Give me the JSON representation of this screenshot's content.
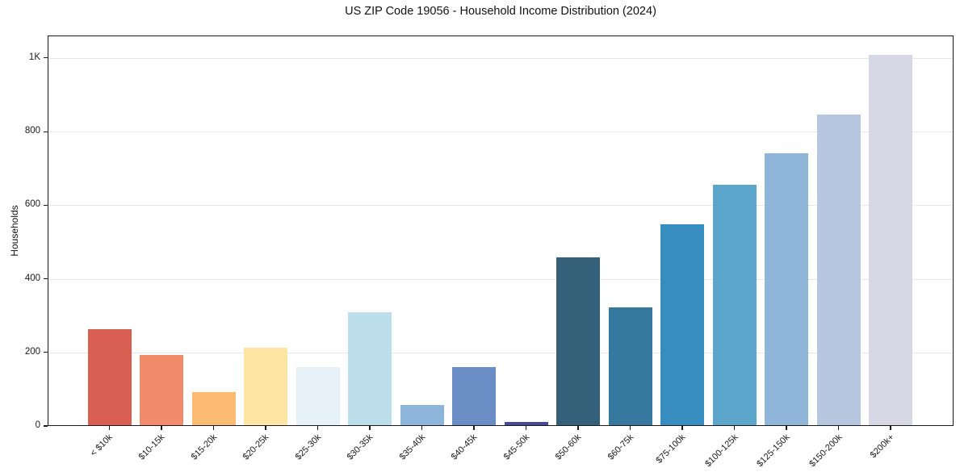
{
  "chart_data": {
    "type": "bar",
    "title": "US ZIP Code 19056 - Household Income Distribution (2024)",
    "xlabel": "",
    "ylabel": "Households",
    "categories": [
      "< $10k",
      "$10-15k",
      "$15-20k",
      "$20-25k",
      "$25-30k",
      "$30-35k",
      "$35-40k",
      "$40-45k",
      "$45-50k",
      "$50-60k",
      "$60-75k",
      "$75-100k",
      "$100-125k",
      "$125-150k",
      "$150-200k",
      "$200k+"
    ],
    "values": [
      263,
      192,
      93,
      213,
      160,
      309,
      57,
      160,
      10,
      458,
      322,
      548,
      656,
      740,
      846,
      1009
    ],
    "bar_colors": [
      "#d95f52",
      "#f28b6a",
      "#fbbb72",
      "#fde5a4",
      "#e6f2f7",
      "#bcdeeb",
      "#8db5d9",
      "#6b8dc6",
      "#474a9b",
      "#35607a",
      "#36789e",
      "#388dc0",
      "#5da6cb",
      "#8fb5d8",
      "#b5c6de",
      "#d7d8e6"
    ],
    "yticks": [
      {
        "value": 0,
        "label": "0"
      },
      {
        "value": 200,
        "label": "200"
      },
      {
        "value": 400,
        "label": "400"
      },
      {
        "value": 600,
        "label": "600"
      },
      {
        "value": 800,
        "label": "800"
      },
      {
        "value": 1000,
        "label": "1K"
      }
    ],
    "ylim": [
      0,
      1061
    ],
    "grid": "y-major-only",
    "gridline_color": "#e7e7e7",
    "legend": "none",
    "background_color": "#ffffff",
    "axis_color": "#1a1a1a",
    "xtick_rotation_deg": 45
  }
}
